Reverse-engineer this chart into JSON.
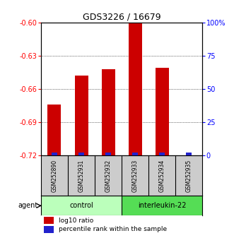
{
  "title": "GDS3226 / 16679",
  "samples": [
    "GSM252890",
    "GSM252931",
    "GSM252932",
    "GSM252933",
    "GSM252934",
    "GSM252935"
  ],
  "log10_ratio": [
    -0.674,
    -0.648,
    -0.642,
    -0.601,
    -0.641,
    -0.72
  ],
  "percentile_rank_vals": [
    2,
    2,
    2,
    2,
    2,
    2
  ],
  "ylim_left": [
    -0.72,
    -0.6
  ],
  "ylim_right": [
    0,
    100
  ],
  "yticks_left": [
    -0.72,
    -0.69,
    -0.66,
    -0.63,
    -0.6
  ],
  "yticks_right": [
    0,
    25,
    50,
    75,
    100
  ],
  "ytick_right_labels": [
    "0",
    "25",
    "50",
    "75",
    "100%"
  ],
  "bar_color_red": "#cc0000",
  "bar_color_blue": "#2222cc",
  "background_color": "#ffffff",
  "group_row_color_control": "#bbffbb",
  "group_row_color_interleukin": "#55dd55",
  "sample_row_color": "#cccccc"
}
